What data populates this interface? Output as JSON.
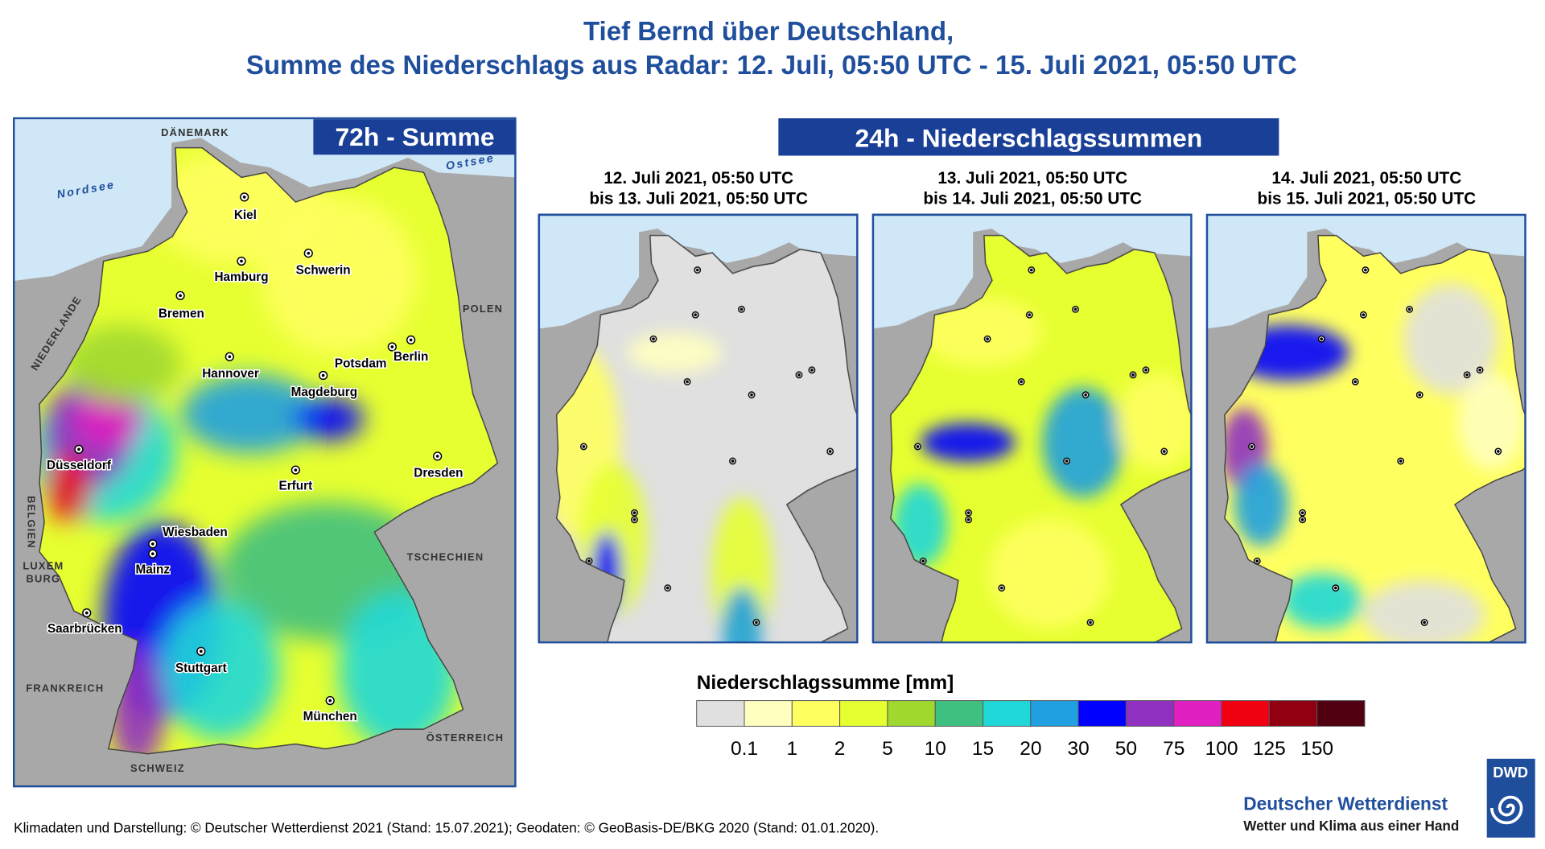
{
  "header": {
    "title_line1": "Tief Bernd über Deutschland,",
    "title_line2": "Summe des Niederschlags aus Radar: 12. Juli, 05:50 UTC - 15. Juli 2021, 05:50 UTC"
  },
  "main_map": {
    "heading": "72h - Summe",
    "seas": [
      "Nordsee",
      "Ostsee"
    ],
    "countries": [
      "DÄNEMARK",
      "POLEN",
      "NIEDERLANDE",
      "BELGIEN",
      "LUXEM",
      "BURG",
      "TSCHECHIEN",
      "FRANKREICH",
      "ÖSTERREICH",
      "SCHWEIZ"
    ],
    "cities": [
      "Kiel",
      "Hamburg",
      "Schwerin",
      "Bremen",
      "Hannover",
      "Berlin",
      "Potsdam",
      "Magdeburg",
      "Düsseldorf",
      "Erfurt",
      "Dresden",
      "Wiesbaden",
      "Mainz",
      "Saarbrücken",
      "Stuttgart",
      "München"
    ]
  },
  "daily_panel": {
    "heading": "24h - Niederschlagssummen",
    "maps": [
      {
        "period_start": "12. Juli 2021, 05:50 UTC",
        "period_end": "bis 13. Juli 2021, 05:50 UTC"
      },
      {
        "period_start": "13. Juli 2021, 05:50 UTC",
        "period_end": "bis 14. Juli 2021, 05:50 UTC"
      },
      {
        "period_start": "14. Juli 2021, 05:50 UTC",
        "period_end": "bis 15. Juli 2021, 05:50 UTC"
      }
    ]
  },
  "legend": {
    "title": "Niederschlagssumme [mm]",
    "colors": [
      "#e0e0e0",
      "#ffffc0",
      "#ffff60",
      "#e6ff30",
      "#a0d830",
      "#40c080",
      "#20d8d8",
      "#20a0e0",
      "#0000ff",
      "#9030c0",
      "#e020c0",
      "#f00010",
      "#900010",
      "#500010"
    ],
    "ticks": [
      0.1,
      1,
      2,
      5,
      10,
      15,
      20,
      30,
      50,
      75,
      100,
      125,
      150
    ]
  },
  "footer": {
    "credits": "Klimadaten und Darstellung: © Deutscher Wetterdienst 2021 (Stand: 15.07.2021); Geodaten: © GeoBasis-DE/BKG 2020 (Stand: 01.01.2020).",
    "logo_badge": "DWD",
    "org_name": "Deutscher Wetterdienst",
    "slogan": "Wetter und Klima aus einer Hand"
  }
}
